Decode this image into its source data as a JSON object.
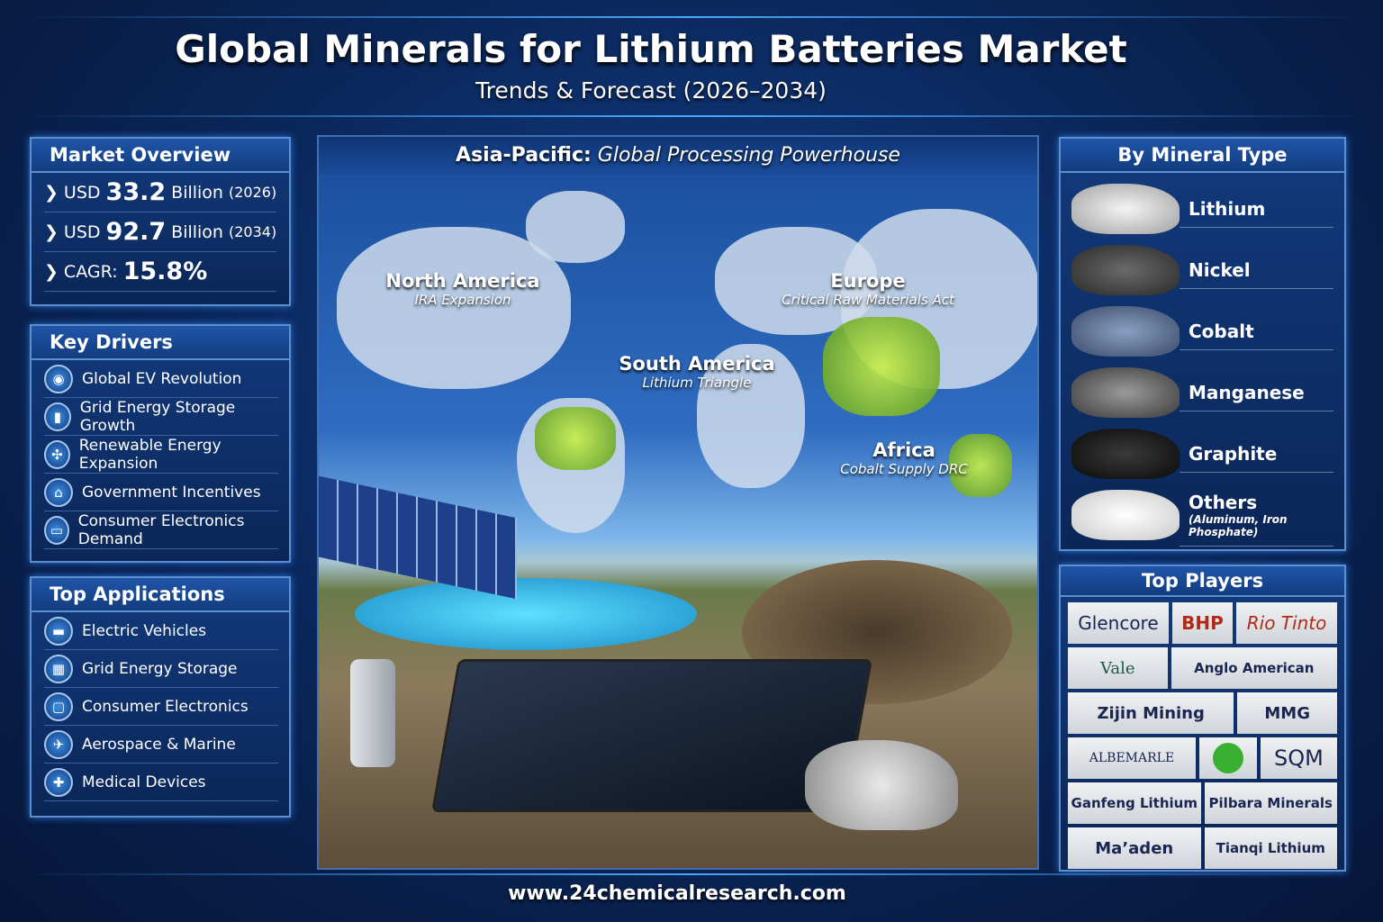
{
  "header": {
    "title": "Global Minerals for Lithium Batteries Market",
    "subtitle": "Trends & Forecast (2026–2034)"
  },
  "market_overview": {
    "heading": "Market Overview",
    "items": [
      {
        "prefix": "USD",
        "value": "33.2",
        "unit": "Billion",
        "year": "(2026)"
      },
      {
        "prefix": "USD",
        "value": "92.7",
        "unit": "Billion",
        "year": "(2034)"
      },
      {
        "prefix": "CAGR:",
        "value": "15.8%",
        "unit": "",
        "year": ""
      }
    ]
  },
  "key_drivers": {
    "heading": "Key Drivers",
    "items": [
      "Global EV Revolution",
      "Grid Energy Storage Growth",
      "Renewable Energy Expansion",
      "Government Incentives",
      "Consumer Electronics Demand"
    ]
  },
  "top_applications": {
    "heading": "Top Applications",
    "items": [
      "Electric Vehicles",
      "Grid Energy Storage",
      "Consumer Electronics",
      "Aerospace & Marine",
      "Medical Devices"
    ]
  },
  "map": {
    "heading_bold": "Asia-Pacific:",
    "heading_italic": "Global Processing Powerhouse",
    "regions": [
      {
        "name": "North America",
        "note": "IRA Expansion"
      },
      {
        "name": "Europe",
        "note": "Critical Raw Materials Act"
      },
      {
        "name": "South America",
        "note": "Lithium Triangle"
      },
      {
        "name": "Africa",
        "note": "Cobalt Supply DRC"
      }
    ]
  },
  "mineral_types": {
    "heading": "By Mineral Type",
    "items": [
      {
        "name": "Lithium",
        "note": ""
      },
      {
        "name": "Nickel",
        "note": ""
      },
      {
        "name": "Cobalt",
        "note": ""
      },
      {
        "name": "Manganese",
        "note": ""
      },
      {
        "name": "Graphite",
        "note": ""
      },
      {
        "name": "Others",
        "note": "(Aluminum, Iron Phosphate)"
      }
    ]
  },
  "top_players": {
    "heading": "Top Players",
    "rows": [
      [
        "Glencore",
        "BHP",
        "Rio Tinto"
      ],
      [
        "Vale",
        "Anglo American"
      ],
      [
        "Zijin Mining",
        "MMG"
      ],
      [
        "ALBEMARLE",
        "",
        "SQM"
      ],
      [
        "Ganfeng Lithium",
        "Pilbara Minerals"
      ],
      [
        "Ma’aden",
        "Tianqi Lithium"
      ]
    ]
  },
  "footer": {
    "url": "www.24chemicalresearch.com"
  },
  "colors": {
    "background": "#0a2557",
    "panel_border": "#5c8fd0",
    "bhp": "#b02a1a",
    "rio_tinto": "#b02a1a",
    "highlight_green": "#9be03a"
  }
}
